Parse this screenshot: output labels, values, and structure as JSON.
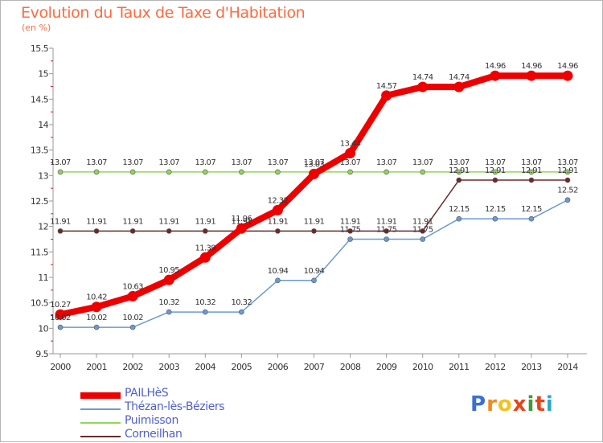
{
  "header": {
    "title": "Evolution du Taux de Taxe d'Habitation",
    "unit": "(en %)"
  },
  "brand": {
    "letters": [
      "P",
      "r",
      "o",
      "x",
      "i",
      "t",
      "i"
    ],
    "colors": [
      "#3b6fd6",
      "#f28a1c",
      "#f2c31c",
      "#e8431c",
      "#3b9d3b",
      "#e8431c",
      "#2aa7c9"
    ]
  },
  "chart_data": {
    "type": "line",
    "title": "Evolution du Taux de Taxe d'Habitation",
    "ylabel": "(en %)",
    "xlabel": "",
    "x": [
      "2000",
      "2001",
      "2002",
      "2003",
      "2004",
      "2005",
      "2006",
      "2007",
      "2008",
      "2009",
      "2010",
      "2011",
      "2012",
      "2013",
      "2014"
    ],
    "ylim": [
      9.5,
      15.5
    ],
    "yticks": [
      "9.5",
      "10",
      "10.5",
      "11",
      "11.5",
      "12",
      "12.5",
      "13",
      "13.5",
      "14",
      "14.5",
      "15",
      "15.5"
    ],
    "grid": false,
    "legend_position": "bottom-left",
    "series": [
      {
        "name": "PAILHèS",
        "color": "#ee0000",
        "values": [
          10.27,
          10.42,
          10.63,
          10.95,
          11.39,
          11.96,
          12.32,
          13.03,
          13.44,
          14.57,
          14.74,
          14.74,
          14.96,
          14.96,
          14.96
        ],
        "labels": [
          "10.27",
          "10.42",
          "10.63",
          "10.95",
          "11.39",
          "11.96",
          "12.32",
          "13.03",
          "13.44",
          "14.57",
          "14.74",
          "14.74",
          "14.96",
          "14.96",
          "14.96"
        ]
      },
      {
        "name": "Thézan-lès-Béziers",
        "color": "#6a9bd2",
        "values": [
          10.02,
          10.02,
          10.02,
          10.32,
          10.32,
          10.32,
          10.94,
          10.94,
          11.75,
          11.75,
          11.75,
          12.15,
          12.15,
          12.15,
          12.52
        ],
        "labels": [
          "10.02",
          "10.02",
          "10.02",
          "10.32",
          "10.32",
          "10.32",
          "10.94",
          "10.94",
          "11.75",
          "11.75",
          "11.75",
          "12.15",
          "12.15",
          "12.15",
          "12.52"
        ]
      },
      {
        "name": "Puimisson",
        "color": "#8fd65a",
        "values": [
          13.07,
          13.07,
          13.07,
          13.07,
          13.07,
          13.07,
          13.07,
          13.07,
          13.07,
          13.07,
          13.07,
          13.07,
          13.07,
          13.07,
          13.07
        ],
        "labels": [
          "13.07",
          "13.07",
          "13.07",
          "13.07",
          "13.07",
          "13.07",
          "13.07",
          "13.07",
          "13.07",
          "13.07",
          "13.07",
          "13.07",
          "13.07",
          "13.07",
          "13.07"
        ]
      },
      {
        "name": "Corneilhan",
        "color": "#6b2a2a",
        "values": [
          11.91,
          11.91,
          11.91,
          11.91,
          11.91,
          11.91,
          11.91,
          11.91,
          11.91,
          11.91,
          11.91,
          12.91,
          12.91,
          12.91,
          12.91
        ],
        "labels": [
          "11.91",
          "11.91",
          "11.91",
          "11.91",
          "11.91",
          "11.91",
          "11.91",
          "11.91",
          "11.91",
          "11.91",
          "11.91",
          "12.91",
          "12.91",
          "12.91",
          "12.91"
        ]
      }
    ]
  }
}
